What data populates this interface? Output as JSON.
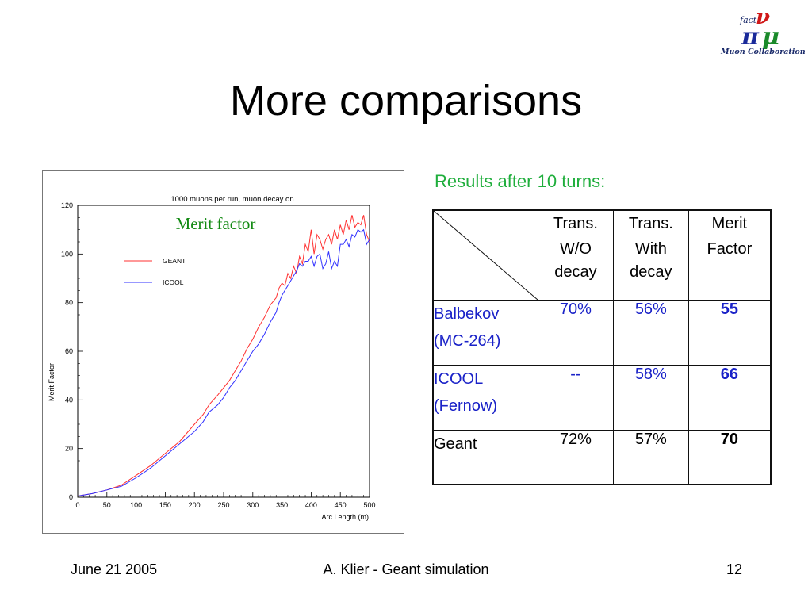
{
  "slide": {
    "title": "More comparisons",
    "logo_caption": "Muon Collaboration",
    "logo_letters": {
      "small": "fact",
      "pi": "π",
      "nu": "ν",
      "mu": "μ"
    },
    "results_heading": "Results after 10 turns:",
    "footer": {
      "date": "June 21 2005",
      "center": "A. Klier - Geant simulation",
      "page": "12"
    }
  },
  "table": {
    "headers": [
      {
        "lines": [
          "Trans.",
          "W/O",
          "decay"
        ]
      },
      {
        "lines": [
          "Trans.",
          "With",
          "decay"
        ]
      },
      {
        "lines": [
          "Merit",
          "Factor"
        ]
      }
    ],
    "rows": [
      {
        "label_lines": [
          "Balbekov",
          "(MC-264)"
        ],
        "values": [
          "70%",
          "56%",
          "55"
        ]
      },
      {
        "label_lines": [
          "ICOOL",
          "(Fernow)"
        ],
        "values": [
          "--",
          "58%",
          "66"
        ]
      },
      {
        "label_lines": [
          "Geant"
        ],
        "values": [
          "72%",
          "57%",
          "70"
        ]
      }
    ]
  },
  "colors": {
    "heading": "#1fae3c",
    "row_blue": "#1a22c8",
    "geant": "#ff3030",
    "icool": "#3030ff",
    "annotation": "#138a13"
  },
  "chart_data": {
    "type": "line",
    "title": "1000 muons per run, muon decay on",
    "annotation": "Merit factor",
    "xlabel": "Arc Length (m)",
    "ylabel": "Merit Factor",
    "xlim": [
      0,
      500
    ],
    "ylim": [
      0,
      120
    ],
    "xticks": [
      "0",
      "50",
      "100",
      "150",
      "200",
      "250",
      "300",
      "350",
      "400",
      "450",
      "500"
    ],
    "yticks": [
      "0",
      "20",
      "40",
      "60",
      "80",
      "100",
      "120"
    ],
    "legend_position": "upper-left",
    "grid": false,
    "series": [
      {
        "name": "GEANT",
        "color": "#ff3030",
        "x": [
          0,
          25,
          50,
          75,
          100,
          125,
          150,
          175,
          200,
          215,
          225,
          240,
          250,
          260,
          270,
          280,
          290,
          300,
          310,
          320,
          330,
          340,
          345,
          350,
          355,
          360,
          365,
          370,
          375,
          380,
          385,
          390,
          395,
          400,
          405,
          410,
          415,
          420,
          425,
          430,
          435,
          440,
          445,
          450,
          455,
          460,
          465,
          470,
          475,
          480,
          485,
          490,
          495,
          500
        ],
        "y": [
          0.5,
          1.5,
          3,
          5,
          9,
          13,
          18,
          23,
          30,
          34,
          38,
          42,
          45,
          48,
          52,
          56,
          61,
          65,
          70,
          74,
          79,
          82,
          86,
          88,
          87,
          92,
          90,
          95,
          92,
          99,
          96,
          104,
          101,
          110,
          100,
          108,
          106,
          102,
          106,
          108,
          104,
          110,
          106,
          112,
          108,
          114,
          110,
          116,
          111,
          113,
          112,
          116,
          108,
          105
        ]
      },
      {
        "name": "ICOOL",
        "color": "#3030ff",
        "x": [
          0,
          25,
          50,
          75,
          100,
          125,
          150,
          175,
          200,
          215,
          225,
          240,
          250,
          260,
          270,
          280,
          290,
          300,
          310,
          320,
          330,
          340,
          345,
          350,
          355,
          360,
          365,
          370,
          375,
          380,
          385,
          390,
          395,
          400,
          405,
          410,
          415,
          420,
          425,
          430,
          435,
          440,
          445,
          450,
          455,
          460,
          465,
          470,
          475,
          480,
          485,
          490,
          495,
          500
        ],
        "y": [
          0.5,
          1.5,
          3,
          4.5,
          8,
          12,
          17,
          22,
          27,
          31,
          35,
          38,
          41,
          45,
          48,
          52,
          56,
          60,
          63,
          67,
          72,
          76,
          80,
          83,
          85,
          87,
          89,
          91,
          93,
          96,
          95,
          97,
          97,
          99,
          95,
          99,
          100,
          94,
          96,
          101,
          94,
          97,
          95,
          104,
          104,
          106,
          103,
          108,
          107,
          110,
          109,
          110,
          104,
          106
        ]
      }
    ]
  }
}
